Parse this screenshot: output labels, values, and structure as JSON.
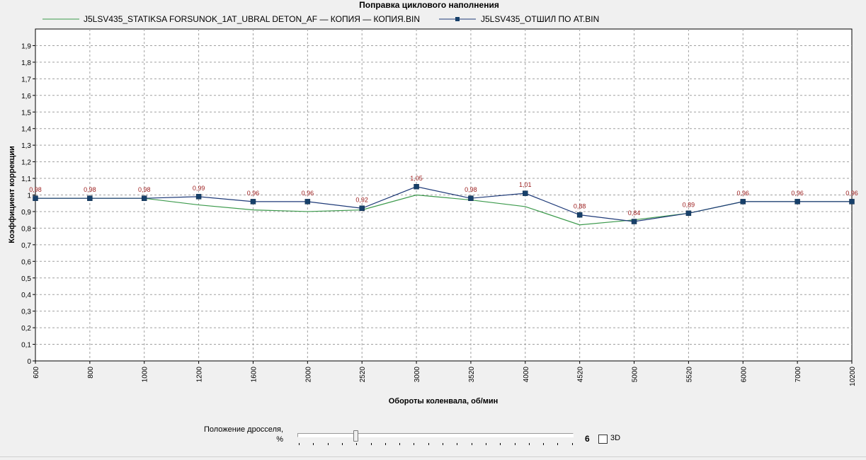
{
  "colors": {
    "series1": "#3c9a4c",
    "series2": "#1e3a78",
    "marker": "#17406a",
    "data_label": "#9b1b1b",
    "grid": "#a0a0a0"
  },
  "controls": {
    "throttle_label_line1": "Положение дросселя,",
    "throttle_label_line2": "%",
    "throttle_value": "6",
    "slider_position_fraction": 0.2,
    "checkbox_label": "3D",
    "checkbox_checked": false
  },
  "chart_data": {
    "type": "line",
    "title": "Поправка циклового наполнения",
    "xlabel": "Обороты коленвала, об/мин",
    "ylabel": "Коэффициент коррекции",
    "categories": [
      "600",
      "800",
      "1000",
      "1200",
      "1600",
      "2000",
      "2520",
      "3000",
      "3520",
      "4000",
      "4520",
      "5000",
      "5520",
      "6000",
      "7000",
      "10200"
    ],
    "ylim": [
      0,
      2
    ],
    "y_ticks": [
      "0",
      "0,1",
      "0,2",
      "0,3",
      "0,4",
      "0,5",
      "0,6",
      "0,7",
      "0,8",
      "0,9",
      "1",
      "1,1",
      "1,2",
      "1,3",
      "1,4",
      "1,5",
      "1,6",
      "1,7",
      "1,8",
      "1,9"
    ],
    "grid": true,
    "legend_position": "top",
    "series": [
      {
        "name": "J5LSV435_STATIKSA FORSUNOK_1AT_UBRAL DETON_AF — КОПИЯ — КОПИЯ.BIN",
        "values": [
          0.98,
          0.98,
          0.98,
          0.94,
          0.91,
          0.9,
          0.91,
          1.0,
          0.97,
          0.93,
          0.82,
          0.85,
          0.89,
          0.96,
          0.96,
          0.96
        ],
        "markers": false,
        "labels": null
      },
      {
        "name": "J5LSV435_ОТШИЛ ПО AT.BIN",
        "values": [
          0.98,
          0.98,
          0.98,
          0.99,
          0.96,
          0.96,
          0.92,
          1.05,
          0.98,
          1.01,
          0.88,
          0.84,
          0.89,
          0.96,
          0.96,
          0.96
        ],
        "markers": true,
        "labels": [
          "0,98",
          "0,98",
          "0,98",
          "0,99",
          "0,96",
          "0,96",
          "0,92",
          "1,05",
          "0,98",
          "1,01",
          "0,88",
          "0,84",
          "0,89",
          "0,96",
          "0,96",
          "0,96"
        ]
      }
    ]
  }
}
